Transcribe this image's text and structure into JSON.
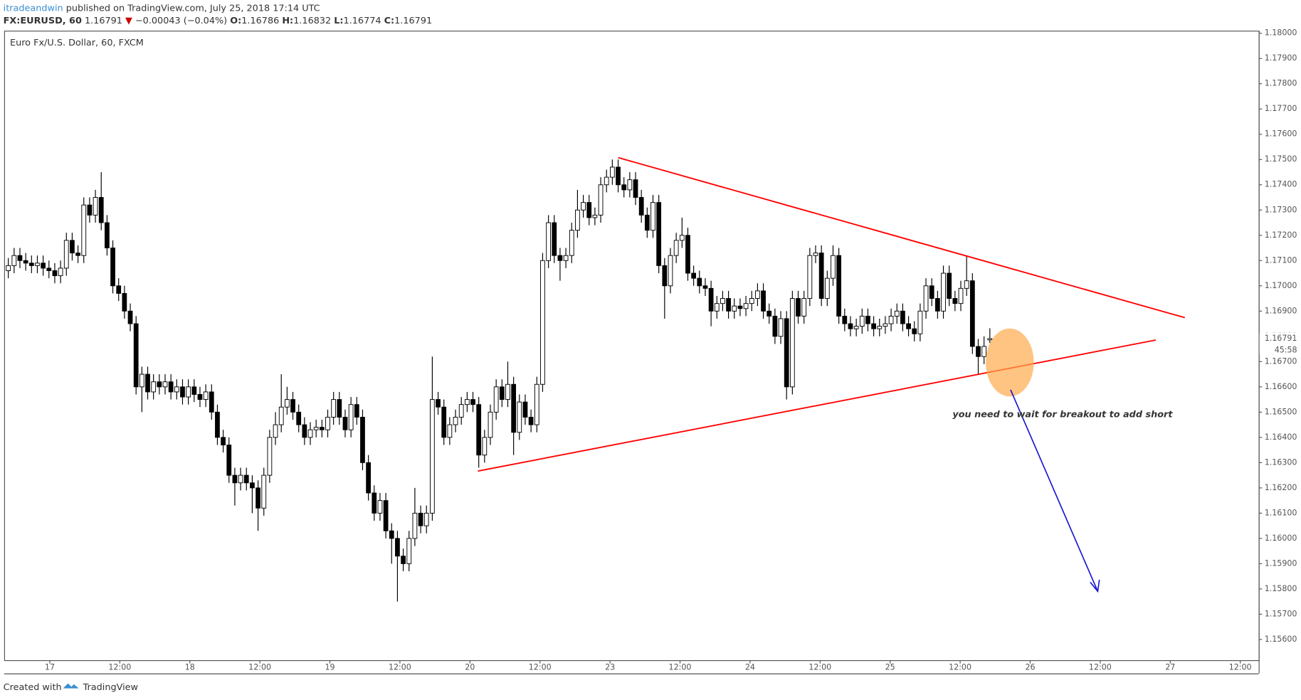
{
  "header": {
    "author": "itradeandwin",
    "published": "published on TradingView.com, July 25, 2018 17:14 UTC",
    "symbol": "FX:EURUSD, 60",
    "last": "1.16791",
    "arrow": "▼",
    "change": "−0.00043 (−0.04%)",
    "o_label": "O:",
    "o": "1.16786",
    "h_label": "H:",
    "h": "1.16832",
    "l_label": "L:",
    "l": "1.16774",
    "c_label": "C:",
    "c": "1.16791"
  },
  "footer": {
    "created": "Created with",
    "brand": "TradingView"
  },
  "chart_data": {
    "type": "candlestick",
    "title": "Euro Fx/U.S. Dollar, 60, FXCM",
    "up_color": "#ffffff",
    "down_color": "#000000",
    "ylim": [
      1.15518,
      1.1801
    ],
    "yticks": [
      {
        "value": 1.18,
        "label": "1.18000"
      },
      {
        "value": 1.179,
        "label": "1.17900"
      },
      {
        "value": 1.178,
        "label": "1.17800"
      },
      {
        "value": 1.177,
        "label": "1.17700"
      },
      {
        "value": 1.176,
        "label": "1.17600"
      },
      {
        "value": 1.175,
        "label": "1.17500"
      },
      {
        "value": 1.174,
        "label": "1.17400"
      },
      {
        "value": 1.173,
        "label": "1.17300"
      },
      {
        "value": 1.172,
        "label": "1.17200"
      },
      {
        "value": 1.171,
        "label": "1.17100"
      },
      {
        "value": 1.17,
        "label": "1.17000"
      },
      {
        "value": 1.169,
        "label": "1.16900"
      },
      {
        "value": 1.168,
        "label": "1.16800"
      },
      {
        "value": 1.167,
        "label": "1.16700"
      },
      {
        "value": 1.166,
        "label": "1.16600"
      },
      {
        "value": 1.165,
        "label": "1.16500"
      },
      {
        "value": 1.164,
        "label": "1.16400"
      },
      {
        "value": 1.163,
        "label": "1.16300"
      },
      {
        "value": 1.162,
        "label": "1.16200"
      },
      {
        "value": 1.161,
        "label": "1.16100"
      },
      {
        "value": 1.16,
        "label": "1.16000"
      },
      {
        "value": 1.159,
        "label": "1.15900"
      },
      {
        "value": 1.158,
        "label": "1.15800"
      },
      {
        "value": 1.157,
        "label": "1.15700"
      },
      {
        "value": 1.156,
        "label": "1.15600"
      }
    ],
    "x_labels": [
      "17",
      "12:00",
      "18",
      "12:00",
      "19",
      "12:00",
      "20",
      "12:00",
      "23",
      "12:00",
      "24",
      "12:00",
      "25",
      "12:00",
      "26",
      "12:00",
      "27",
      "12:00"
    ],
    "last_price": {
      "value": 1.16791,
      "label": "1.16791"
    },
    "countdown": "45:58",
    "annotation": "you need to wait for breakout to add short",
    "candles": [
      [
        1.1706,
        1.1711,
        1.1703,
        1.1708
      ],
      [
        1.1708,
        1.1715,
        1.1705,
        1.1712
      ],
      [
        1.1712,
        1.1715,
        1.1707,
        1.171
      ],
      [
        1.171,
        1.1713,
        1.1706,
        1.1709
      ],
      [
        1.1709,
        1.1712,
        1.1705,
        1.1708
      ],
      [
        1.1708,
        1.1712,
        1.1705,
        1.1709
      ],
      [
        1.1709,
        1.1712,
        1.1704,
        1.1707
      ],
      [
        1.1707,
        1.171,
        1.1703,
        1.1706
      ],
      [
        1.1706,
        1.1709,
        1.1701,
        1.1704
      ],
      [
        1.1704,
        1.171,
        1.1701,
        1.1707
      ],
      [
        1.1707,
        1.1721,
        1.1704,
        1.1718
      ],
      [
        1.1718,
        1.1721,
        1.171,
        1.1713
      ],
      [
        1.1713,
        1.1716,
        1.1709,
        1.1712
      ],
      [
        1.1712,
        1.1735,
        1.1709,
        1.1732
      ],
      [
        1.1732,
        1.1735,
        1.1725,
        1.1728
      ],
      [
        1.1728,
        1.1738,
        1.1725,
        1.1735
      ],
      [
        1.1735,
        1.1745,
        1.1722,
        1.1725
      ],
      [
        1.1725,
        1.1728,
        1.1712,
        1.1715
      ],
      [
        1.1715,
        1.1718,
        1.1697,
        1.17
      ],
      [
        1.17,
        1.1703,
        1.1694,
        1.1697
      ],
      [
        1.1697,
        1.17,
        1.1687,
        1.169
      ],
      [
        1.169,
        1.1693,
        1.1682,
        1.1685
      ],
      [
        1.1685,
        1.1688,
        1.1657,
        1.166
      ],
      [
        1.166,
        1.1668,
        1.165,
        1.1665
      ],
      [
        1.1665,
        1.1668,
        1.1655,
        1.1658
      ],
      [
        1.1658,
        1.1665,
        1.1655,
        1.1662
      ],
      [
        1.1662,
        1.1665,
        1.1657,
        1.166
      ],
      [
        1.166,
        1.1665,
        1.1657,
        1.1662
      ],
      [
        1.1662,
        1.1665,
        1.1655,
        1.1658
      ],
      [
        1.1658,
        1.1663,
        1.1655,
        1.166
      ],
      [
        1.166,
        1.1663,
        1.1653,
        1.1656
      ],
      [
        1.1656,
        1.1663,
        1.1653,
        1.166
      ],
      [
        1.166,
        1.1663,
        1.1654,
        1.1657
      ],
      [
        1.1657,
        1.166,
        1.1652,
        1.1655
      ],
      [
        1.1655,
        1.1661,
        1.1652,
        1.1658
      ],
      [
        1.1658,
        1.1661,
        1.1647,
        1.165
      ],
      [
        1.165,
        1.1653,
        1.1637,
        1.164
      ],
      [
        1.164,
        1.1643,
        1.1634,
        1.1637
      ],
      [
        1.1637,
        1.164,
        1.1622,
        1.1625
      ],
      [
        1.1625,
        1.1628,
        1.1613,
        1.1622
      ],
      [
        1.1622,
        1.1628,
        1.1619,
        1.1625
      ],
      [
        1.1625,
        1.1628,
        1.1619,
        1.1622
      ],
      [
        1.1622,
        1.1625,
        1.161,
        1.162
      ],
      [
        1.162,
        1.1623,
        1.1603,
        1.1612
      ],
      [
        1.1612,
        1.1628,
        1.1609,
        1.1625
      ],
      [
        1.1625,
        1.1643,
        1.1622,
        1.164
      ],
      [
        1.164,
        1.165,
        1.1637,
        1.1645
      ],
      [
        1.1645,
        1.1665,
        1.1642,
        1.1652
      ],
      [
        1.1652,
        1.166,
        1.1649,
        1.1655
      ],
      [
        1.1655,
        1.1658,
        1.1647,
        1.165
      ],
      [
        1.165,
        1.1653,
        1.1642,
        1.1645
      ],
      [
        1.1645,
        1.1648,
        1.1637,
        1.164
      ],
      [
        1.164,
        1.1646,
        1.1637,
        1.1643
      ],
      [
        1.1643,
        1.1647,
        1.164,
        1.1644
      ],
      [
        1.1644,
        1.1647,
        1.164,
        1.1643
      ],
      [
        1.1643,
        1.1651,
        1.164,
        1.1648
      ],
      [
        1.1648,
        1.1658,
        1.1645,
        1.1655
      ],
      [
        1.1655,
        1.1658,
        1.1645,
        1.1648
      ],
      [
        1.1648,
        1.1651,
        1.164,
        1.1643
      ],
      [
        1.1643,
        1.1656,
        1.164,
        1.1653
      ],
      [
        1.1653,
        1.1656,
        1.1645,
        1.1648
      ],
      [
        1.1648,
        1.1651,
        1.1627,
        1.163
      ],
      [
        1.163,
        1.1633,
        1.1615,
        1.1618
      ],
      [
        1.1618,
        1.1621,
        1.1607,
        1.161
      ],
      [
        1.161,
        1.1618,
        1.1607,
        1.1615
      ],
      [
        1.1615,
        1.1618,
        1.16,
        1.1603
      ],
      [
        1.1603,
        1.1606,
        1.159,
        1.16
      ],
      [
        1.16,
        1.1603,
        1.1575,
        1.1593
      ],
      [
        1.1593,
        1.1596,
        1.1587,
        1.159
      ],
      [
        1.159,
        1.1603,
        1.1587,
        1.16
      ],
      [
        1.16,
        1.162,
        1.1597,
        1.161
      ],
      [
        1.161,
        1.1613,
        1.1602,
        1.1605
      ],
      [
        1.1605,
        1.1613,
        1.1602,
        1.161
      ],
      [
        1.161,
        1.1672,
        1.1607,
        1.1655
      ],
      [
        1.1655,
        1.1658,
        1.1649,
        1.1652
      ],
      [
        1.1652,
        1.1655,
        1.1637,
        1.164
      ],
      [
        1.164,
        1.1648,
        1.1637,
        1.1645
      ],
      [
        1.1645,
        1.1651,
        1.1642,
        1.1648
      ],
      [
        1.1648,
        1.1656,
        1.1645,
        1.1653
      ],
      [
        1.1653,
        1.1658,
        1.165,
        1.1655
      ],
      [
        1.1655,
        1.1658,
        1.165,
        1.1653
      ],
      [
        1.1653,
        1.1656,
        1.1628,
        1.1633
      ],
      [
        1.1633,
        1.1643,
        1.163,
        1.164
      ],
      [
        1.164,
        1.1653,
        1.1637,
        1.165
      ],
      [
        1.165,
        1.1663,
        1.1647,
        1.166
      ],
      [
        1.166,
        1.1663,
        1.1652,
        1.1655
      ],
      [
        1.1655,
        1.167,
        1.1652,
        1.1661
      ],
      [
        1.1661,
        1.1664,
        1.1633,
        1.1642
      ],
      [
        1.1642,
        1.1657,
        1.1639,
        1.1654
      ],
      [
        1.1654,
        1.1657,
        1.1645,
        1.1648
      ],
      [
        1.1648,
        1.1651,
        1.1642,
        1.1645
      ],
      [
        1.1645,
        1.1664,
        1.1642,
        1.1661
      ],
      [
        1.1661,
        1.1713,
        1.1658,
        1.171
      ],
      [
        1.171,
        1.1728,
        1.1707,
        1.1725
      ],
      [
        1.1725,
        1.1728,
        1.1709,
        1.1712
      ],
      [
        1.1712,
        1.1715,
        1.1702,
        1.171
      ],
      [
        1.171,
        1.1715,
        1.1707,
        1.1712
      ],
      [
        1.1712,
        1.1725,
        1.1709,
        1.1722
      ],
      [
        1.1722,
        1.1738,
        1.1719,
        1.173
      ],
      [
        1.173,
        1.1736,
        1.1727,
        1.1733
      ],
      [
        1.1733,
        1.1736,
        1.1724,
        1.1727
      ],
      [
        1.1727,
        1.1731,
        1.1724,
        1.1728
      ],
      [
        1.1728,
        1.1743,
        1.1725,
        1.174
      ],
      [
        1.174,
        1.1746,
        1.1737,
        1.1743
      ],
      [
        1.1743,
        1.175,
        1.174,
        1.1747
      ],
      [
        1.1747,
        1.175,
        1.1737,
        1.174
      ],
      [
        1.174,
        1.1743,
        1.1735,
        1.1738
      ],
      [
        1.1738,
        1.1745,
        1.1735,
        1.1742
      ],
      [
        1.1742,
        1.1745,
        1.1732,
        1.1735
      ],
      [
        1.1735,
        1.1738,
        1.1725,
        1.1728
      ],
      [
        1.1728,
        1.1731,
        1.1719,
        1.1722
      ],
      [
        1.1722,
        1.1736,
        1.1719,
        1.1733
      ],
      [
        1.1733,
        1.1736,
        1.1705,
        1.1708
      ],
      [
        1.1708,
        1.1711,
        1.1687,
        1.17
      ],
      [
        1.17,
        1.1715,
        1.1697,
        1.1712
      ],
      [
        1.1712,
        1.1721,
        1.1709,
        1.1718
      ],
      [
        1.1718,
        1.1727,
        1.1715,
        1.172
      ],
      [
        1.172,
        1.1723,
        1.1702,
        1.1705
      ],
      [
        1.1705,
        1.1708,
        1.17,
        1.1703
      ],
      [
        1.1703,
        1.1706,
        1.1697,
        1.17
      ],
      [
        1.17,
        1.1703,
        1.1696,
        1.1699
      ],
      [
        1.1699,
        1.1702,
        1.1684,
        1.169
      ],
      [
        1.169,
        1.1696,
        1.1687,
        1.1693
      ],
      [
        1.1693,
        1.1698,
        1.169,
        1.1695
      ],
      [
        1.1695,
        1.1698,
        1.1687,
        1.169
      ],
      [
        1.169,
        1.1695,
        1.1687,
        1.1692
      ],
      [
        1.1692,
        1.1695,
        1.1688,
        1.1691
      ],
      [
        1.1691,
        1.1696,
        1.1688,
        1.1693
      ],
      [
        1.1693,
        1.1698,
        1.169,
        1.1695
      ],
      [
        1.1695,
        1.1701,
        1.1692,
        1.1698
      ],
      [
        1.1698,
        1.1701,
        1.1687,
        1.169
      ],
      [
        1.169,
        1.1693,
        1.1685,
        1.1688
      ],
      [
        1.1688,
        1.1691,
        1.1677,
        1.168
      ],
      [
        1.168,
        1.169,
        1.1677,
        1.1687
      ],
      [
        1.1687,
        1.169,
        1.1655,
        1.166
      ],
      [
        1.166,
        1.1698,
        1.1657,
        1.1695
      ],
      [
        1.1695,
        1.1698,
        1.1685,
        1.1688
      ],
      [
        1.1688,
        1.1698,
        1.1685,
        1.1695
      ],
      [
        1.1695,
        1.1715,
        1.1692,
        1.1712
      ],
      [
        1.1712,
        1.1716,
        1.1709,
        1.1713
      ],
      [
        1.1713,
        1.1716,
        1.1692,
        1.1695
      ],
      [
        1.1695,
        1.1706,
        1.1692,
        1.1703
      ],
      [
        1.1703,
        1.1716,
        1.17,
        1.1712
      ],
      [
        1.1712,
        1.1715,
        1.1685,
        1.1688
      ],
      [
        1.1688,
        1.1691,
        1.1682,
        1.1685
      ],
      [
        1.1685,
        1.1688,
        1.168,
        1.1683
      ],
      [
        1.1683,
        1.1687,
        1.168,
        1.1684
      ],
      [
        1.1684,
        1.1691,
        1.1681,
        1.1688
      ],
      [
        1.1688,
        1.1691,
        1.1682,
        1.1685
      ],
      [
        1.1685,
        1.1688,
        1.168,
        1.1683
      ],
      [
        1.1683,
        1.1687,
        1.168,
        1.1684
      ],
      [
        1.1684,
        1.1688,
        1.1681,
        1.1685
      ],
      [
        1.1685,
        1.1691,
        1.1682,
        1.1688
      ],
      [
        1.1688,
        1.1693,
        1.1685,
        1.169
      ],
      [
        1.169,
        1.1693,
        1.1682,
        1.1685
      ],
      [
        1.1685,
        1.1688,
        1.168,
        1.1683
      ],
      [
        1.1683,
        1.1686,
        1.1678,
        1.1681
      ],
      [
        1.1681,
        1.1693,
        1.1678,
        1.169
      ],
      [
        1.169,
        1.1703,
        1.1687,
        1.17
      ],
      [
        1.17,
        1.1703,
        1.1692,
        1.1695
      ],
      [
        1.1695,
        1.1698,
        1.1687,
        1.169
      ],
      [
        1.169,
        1.1708,
        1.1687,
        1.1705
      ],
      [
        1.1705,
        1.1708,
        1.1692,
        1.1695
      ],
      [
        1.1695,
        1.1698,
        1.169,
        1.1693
      ],
      [
        1.1693,
        1.1702,
        1.169,
        1.1699
      ],
      [
        1.1699,
        1.1712,
        1.1696,
        1.1702
      ],
      [
        1.1702,
        1.1705,
        1.1673,
        1.1676
      ],
      [
        1.1676,
        1.1679,
        1.1665,
        1.1672
      ],
      [
        1.1672,
        1.168,
        1.1669,
        1.1676
      ],
      [
        1.16786,
        1.16832,
        1.16774,
        1.16791
      ]
    ]
  }
}
